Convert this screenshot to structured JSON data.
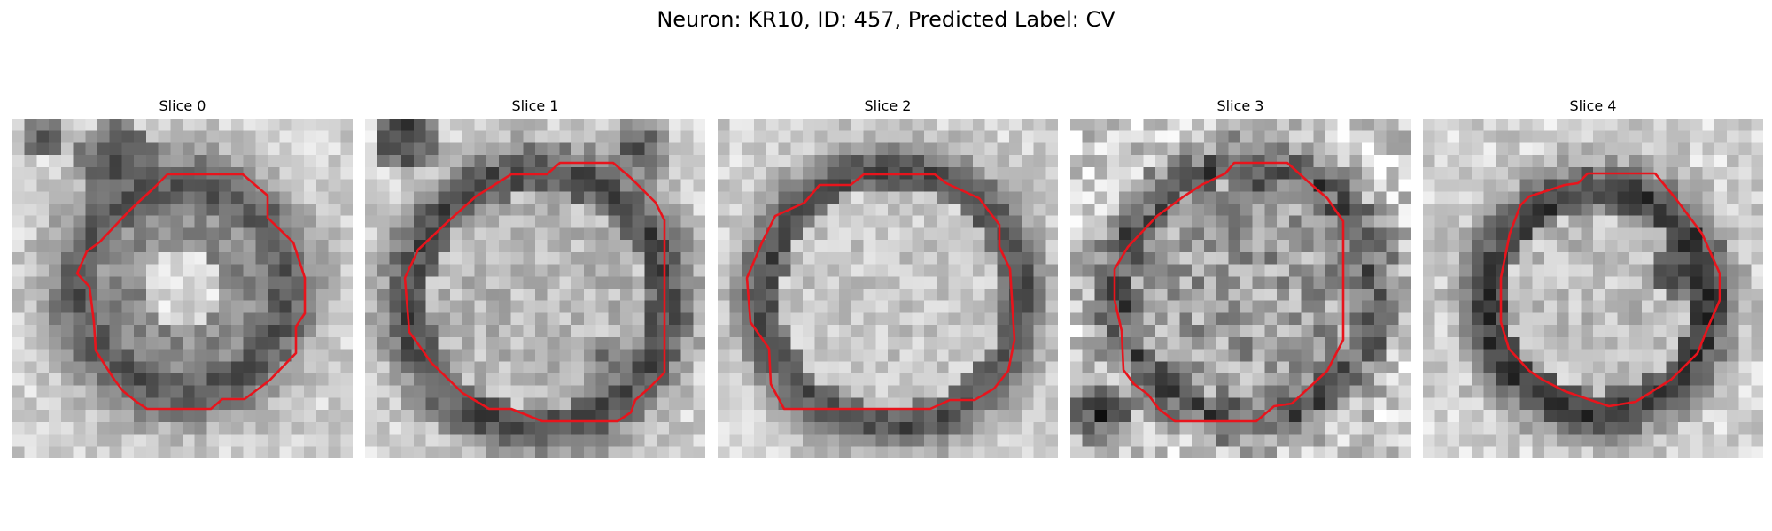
{
  "figure": {
    "title": "Neuron: KR10, ID: 457, Predicted Label: CV"
  },
  "style": {
    "contour_color": "#e8141c",
    "cmap": "gray"
  },
  "panels": [
    {
      "title": "Slice 0"
    },
    {
      "title": "Slice 1"
    },
    {
      "title": "Slice 2"
    },
    {
      "title": "Slice 3"
    },
    {
      "title": "Slice 4"
    }
  ]
}
